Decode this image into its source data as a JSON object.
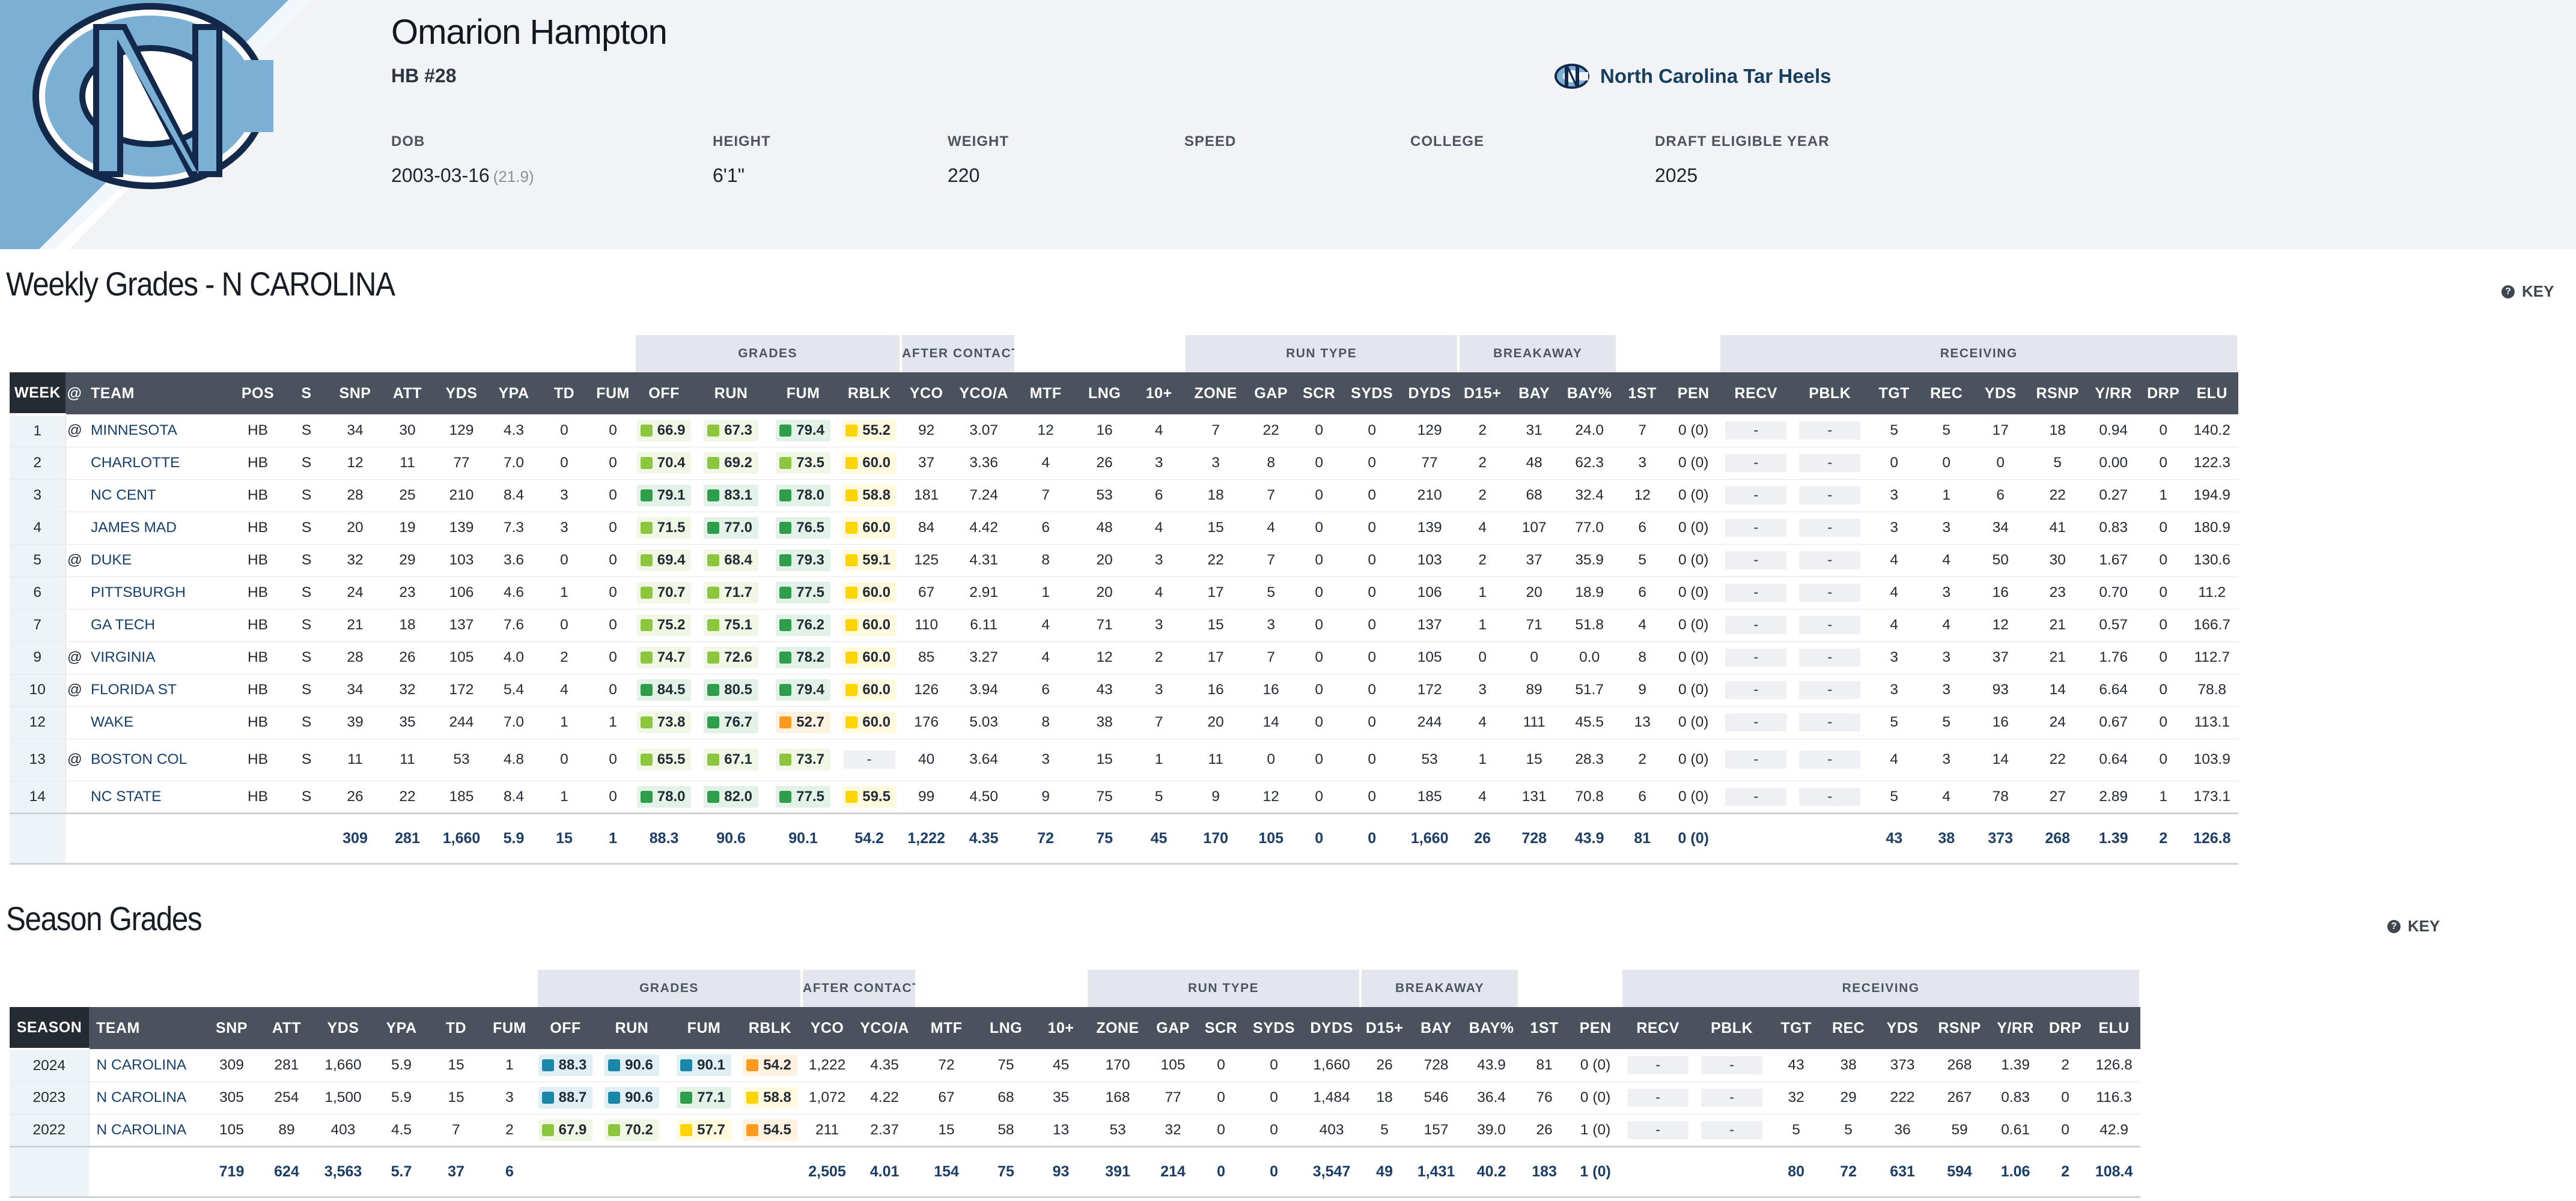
{
  "player": {
    "name": "Omarion Hampton",
    "position": "HB #28",
    "team": "North Carolina Tar Heels",
    "info": {
      "dob_label": "DOB",
      "dob": "2003-03-16",
      "age": "(21.9)",
      "height_label": "HEIGHT",
      "height": "6'1\"",
      "weight_label": "WEIGHT",
      "weight": "220",
      "speed_label": "SPEED",
      "speed": "",
      "college_label": "COLLEGE",
      "college": "",
      "draft_label": "DRAFT ELIGIBLE YEAR",
      "draft": "2025"
    }
  },
  "colors": {
    "grade_elite": "#1a86a8",
    "grade_high": "#2e9e4a",
    "grade_good": "#8cc63f",
    "grade_avg": "#ffd400",
    "grade_low": "#ff9a1e",
    "header_dark": "#242b33",
    "header_mid": "#4a535d",
    "group_bg": "#e3e6ec"
  },
  "weekly": {
    "title": "Weekly Grades - N CAROLINA",
    "key_label": "KEY",
    "groups": [
      "GRADES",
      "AFTER CONTACT",
      "RUN TYPE",
      "BREAKAWAY",
      "RECEIVING"
    ],
    "columns": [
      "WEEK",
      "@",
      "TEAM",
      "POS",
      "S",
      "SNP",
      "ATT",
      "YDS",
      "YPA",
      "TD",
      "FUM",
      "OFF",
      "RUN",
      "FUM",
      "RBLK",
      "YCO",
      "YCO/A",
      "MTF",
      "LNG",
      "10+",
      "ZONE",
      "GAP",
      "SCR",
      "SYDS",
      "DYDS",
      "D15+",
      "BAY",
      "BAY%",
      "1ST",
      "PEN",
      "RECV",
      "PBLK",
      "TGT",
      "REC",
      "YDS",
      "RSNP",
      "Y/RR",
      "DRP",
      "ELU"
    ],
    "rows": [
      [
        "1",
        "@",
        "MINNESOTA",
        "HB",
        "S",
        "34",
        "30",
        "129",
        "4.3",
        "0",
        "0",
        "66.9",
        "67.3",
        "79.4",
        "55.2",
        "92",
        "3.07",
        "12",
        "16",
        "4",
        "7",
        "22",
        "0",
        "0",
        "129",
        "2",
        "31",
        "24.0",
        "7",
        "0 (0)",
        "-",
        "-",
        "5",
        "5",
        "17",
        "18",
        "0.94",
        "0",
        "140.2"
      ],
      [
        "2",
        "",
        "CHARLOTTE",
        "HB",
        "S",
        "12",
        "11",
        "77",
        "7.0",
        "0",
        "0",
        "70.4",
        "69.2",
        "73.5",
        "60.0",
        "37",
        "3.36",
        "4",
        "26",
        "3",
        "3",
        "8",
        "0",
        "0",
        "77",
        "2",
        "48",
        "62.3",
        "3",
        "0 (0)",
        "-",
        "-",
        "0",
        "0",
        "0",
        "5",
        "0.00",
        "0",
        "122.3"
      ],
      [
        "3",
        "",
        "NC CENT",
        "HB",
        "S",
        "28",
        "25",
        "210",
        "8.4",
        "3",
        "0",
        "79.1",
        "83.1",
        "78.0",
        "58.8",
        "181",
        "7.24",
        "7",
        "53",
        "6",
        "18",
        "7",
        "0",
        "0",
        "210",
        "2",
        "68",
        "32.4",
        "12",
        "0 (0)",
        "-",
        "-",
        "3",
        "1",
        "6",
        "22",
        "0.27",
        "1",
        "194.9"
      ],
      [
        "4",
        "",
        "JAMES MAD",
        "HB",
        "S",
        "20",
        "19",
        "139",
        "7.3",
        "3",
        "0",
        "71.5",
        "77.0",
        "76.5",
        "60.0",
        "84",
        "4.42",
        "6",
        "48",
        "4",
        "15",
        "4",
        "0",
        "0",
        "139",
        "4",
        "107",
        "77.0",
        "6",
        "0 (0)",
        "-",
        "-",
        "3",
        "3",
        "34",
        "41",
        "0.83",
        "0",
        "180.9"
      ],
      [
        "5",
        "@",
        "DUKE",
        "HB",
        "S",
        "32",
        "29",
        "103",
        "3.6",
        "0",
        "0",
        "69.4",
        "68.4",
        "79.3",
        "59.1",
        "125",
        "4.31",
        "8",
        "20",
        "3",
        "22",
        "7",
        "0",
        "0",
        "103",
        "2",
        "37",
        "35.9",
        "5",
        "0 (0)",
        "-",
        "-",
        "4",
        "4",
        "50",
        "30",
        "1.67",
        "0",
        "130.6"
      ],
      [
        "6",
        "",
        "PITTSBURGH",
        "HB",
        "S",
        "24",
        "23",
        "106",
        "4.6",
        "1",
        "0",
        "70.7",
        "71.7",
        "77.5",
        "60.0",
        "67",
        "2.91",
        "1",
        "20",
        "4",
        "17",
        "5",
        "0",
        "0",
        "106",
        "1",
        "20",
        "18.9",
        "6",
        "0 (0)",
        "-",
        "-",
        "4",
        "3",
        "16",
        "23",
        "0.70",
        "0",
        "11.2"
      ],
      [
        "7",
        "",
        "GA TECH",
        "HB",
        "S",
        "21",
        "18",
        "137",
        "7.6",
        "0",
        "0",
        "75.2",
        "75.1",
        "76.2",
        "60.0",
        "110",
        "6.11",
        "4",
        "71",
        "3",
        "15",
        "3",
        "0",
        "0",
        "137",
        "1",
        "71",
        "51.8",
        "4",
        "0 (0)",
        "-",
        "-",
        "4",
        "4",
        "12",
        "21",
        "0.57",
        "0",
        "166.7"
      ],
      [
        "9",
        "@",
        "VIRGINIA",
        "HB",
        "S",
        "28",
        "26",
        "105",
        "4.0",
        "2",
        "0",
        "74.7",
        "72.6",
        "78.2",
        "60.0",
        "85",
        "3.27",
        "4",
        "12",
        "2",
        "17",
        "7",
        "0",
        "0",
        "105",
        "0",
        "0",
        "0.0",
        "8",
        "0 (0)",
        "-",
        "-",
        "3",
        "3",
        "37",
        "21",
        "1.76",
        "0",
        "112.7"
      ],
      [
        "10",
        "@",
        "FLORIDA ST",
        "HB",
        "S",
        "34",
        "32",
        "172",
        "5.4",
        "4",
        "0",
        "84.5",
        "80.5",
        "79.4",
        "60.0",
        "126",
        "3.94",
        "6",
        "43",
        "3",
        "16",
        "16",
        "0",
        "0",
        "172",
        "3",
        "89",
        "51.7",
        "9",
        "0 (0)",
        "-",
        "-",
        "3",
        "3",
        "93",
        "14",
        "6.64",
        "0",
        "78.8"
      ],
      [
        "12",
        "",
        "WAKE",
        "HB",
        "S",
        "39",
        "35",
        "244",
        "7.0",
        "1",
        "1",
        "73.8",
        "76.7",
        "52.7",
        "60.0",
        "176",
        "5.03",
        "8",
        "38",
        "7",
        "20",
        "14",
        "0",
        "0",
        "244",
        "4",
        "111",
        "45.5",
        "13",
        "0 (0)",
        "-",
        "-",
        "5",
        "5",
        "16",
        "24",
        "0.67",
        "0",
        "113.1"
      ],
      [
        "13",
        "@",
        "BOSTON COL",
        "HB",
        "S",
        "11",
        "11",
        "53",
        "4.8",
        "0",
        "0",
        "65.5",
        "67.1",
        "73.7",
        "-",
        "40",
        "3.64",
        "3",
        "15",
        "1",
        "11",
        "0",
        "0",
        "0",
        "53",
        "1",
        "15",
        "28.3",
        "2",
        "0 (0)",
        "-",
        "-",
        "4",
        "3",
        "14",
        "22",
        "0.64",
        "0",
        "103.9"
      ],
      [
        "14",
        "",
        "NC STATE",
        "HB",
        "S",
        "26",
        "22",
        "185",
        "8.4",
        "1",
        "0",
        "78.0",
        "82.0",
        "77.5",
        "59.5",
        "99",
        "4.50",
        "9",
        "75",
        "5",
        "9",
        "12",
        "0",
        "0",
        "185",
        "4",
        "131",
        "70.8",
        "6",
        "0 (0)",
        "-",
        "-",
        "5",
        "4",
        "78",
        "27",
        "2.89",
        "1",
        "173.1"
      ]
    ],
    "totals": [
      "",
      "",
      "",
      "",
      "",
      "309",
      "281",
      "1,660",
      "5.9",
      "15",
      "1",
      "88.3",
      "90.6",
      "90.1",
      "54.2",
      "1,222",
      "4.35",
      "72",
      "75",
      "45",
      "170",
      "105",
      "0",
      "0",
      "1,660",
      "26",
      "728",
      "43.9",
      "81",
      "0 (0)",
      "",
      "",
      "43",
      "38",
      "373",
      "268",
      "1.39",
      "2",
      "126.8"
    ]
  },
  "season": {
    "title": "Season Grades",
    "key_label": "KEY",
    "groups": [
      "GRADES",
      "AFTER CONTACT",
      "RUN TYPE",
      "BREAKAWAY",
      "RECEIVING"
    ],
    "columns": [
      "SEASON",
      "TEAM",
      "SNP",
      "ATT",
      "YDS",
      "YPA",
      "TD",
      "FUM",
      "OFF",
      "RUN",
      "FUM",
      "RBLK",
      "YCO",
      "YCO/A",
      "MTF",
      "LNG",
      "10+",
      "ZONE",
      "GAP",
      "SCR",
      "SYDS",
      "DYDS",
      "D15+",
      "BAY",
      "BAY%",
      "1ST",
      "PEN",
      "RECV",
      "PBLK",
      "TGT",
      "REC",
      "YDS",
      "RSNP",
      "Y/RR",
      "DRP",
      "ELU"
    ],
    "rows": [
      [
        "2024",
        "N CAROLINA",
        "309",
        "281",
        "1,660",
        "5.9",
        "15",
        "1",
        "88.3",
        "90.6",
        "90.1",
        "54.2",
        "1,222",
        "4.35",
        "72",
        "75",
        "45",
        "170",
        "105",
        "0",
        "0",
        "1,660",
        "26",
        "728",
        "43.9",
        "81",
        "0 (0)",
        "-",
        "-",
        "43",
        "38",
        "373",
        "268",
        "1.39",
        "2",
        "126.8"
      ],
      [
        "2023",
        "N CAROLINA",
        "305",
        "254",
        "1,500",
        "5.9",
        "15",
        "3",
        "88.7",
        "90.6",
        "77.1",
        "58.8",
        "1,072",
        "4.22",
        "67",
        "68",
        "35",
        "168",
        "77",
        "0",
        "0",
        "1,484",
        "18",
        "546",
        "36.4",
        "76",
        "0 (0)",
        "-",
        "-",
        "32",
        "29",
        "222",
        "267",
        "0.83",
        "0",
        "116.3"
      ],
      [
        "2022",
        "N CAROLINA",
        "105",
        "89",
        "403",
        "4.5",
        "7",
        "2",
        "67.9",
        "70.2",
        "57.7",
        "54.5",
        "211",
        "2.37",
        "15",
        "58",
        "13",
        "53",
        "32",
        "0",
        "0",
        "403",
        "5",
        "157",
        "39.0",
        "26",
        "1 (0)",
        "-",
        "-",
        "5",
        "5",
        "36",
        "59",
        "0.61",
        "0",
        "42.9"
      ]
    ],
    "totals": [
      "",
      "",
      "719",
      "624",
      "3,563",
      "5.7",
      "37",
      "6",
      "",
      "",
      "",
      "",
      "2,505",
      "4.01",
      "154",
      "75",
      "93",
      "391",
      "214",
      "0",
      "0",
      "3,547",
      "49",
      "1,431",
      "40.2",
      "183",
      "1 (0)",
      "",
      "",
      "80",
      "72",
      "631",
      "594",
      "1.06",
      "2",
      "108.4"
    ]
  }
}
